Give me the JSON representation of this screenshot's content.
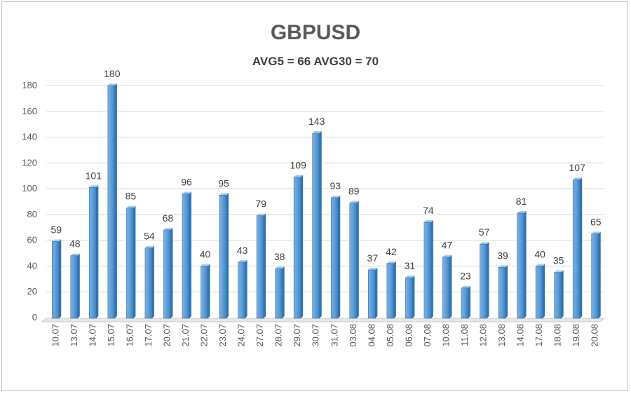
{
  "chart_data": {
    "type": "bar",
    "title": "GBPUSD",
    "subtitle": "AVG5 = 66 AVG30 = 70",
    "categories": [
      "10.07",
      "13.07",
      "14.07",
      "15.07",
      "16.07",
      "17.07",
      "20.07",
      "21.07",
      "22.07",
      "23.07",
      "24.07",
      "27.07",
      "28.07",
      "29.07",
      "30.07",
      "31.07",
      "03.08",
      "04.08",
      "05.08",
      "06.08",
      "07.08",
      "10.08",
      "11.08",
      "12.08",
      "13.08",
      "14.08",
      "17.08",
      "18.08",
      "19.08",
      "20.08"
    ],
    "values": [
      59,
      48,
      101,
      180,
      85,
      54,
      68,
      96,
      40,
      95,
      43,
      79,
      38,
      109,
      143,
      93,
      89,
      37,
      42,
      31,
      74,
      47,
      23,
      57,
      39,
      81,
      40,
      35,
      107,
      65
    ],
    "yticks": [
      0,
      20,
      40,
      60,
      80,
      100,
      120,
      140,
      160,
      180
    ],
    "ylim": [
      0,
      190
    ],
    "grid": true,
    "legend": "none",
    "bar_color": "#5b9bd5",
    "bar_dark": "#2e75b6"
  }
}
